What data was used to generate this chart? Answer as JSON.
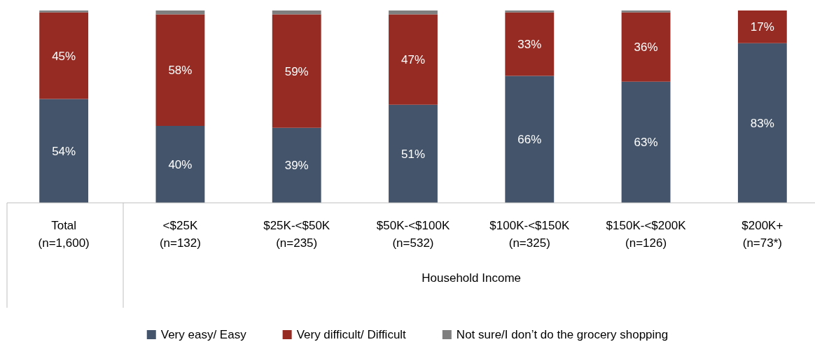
{
  "chart_data": {
    "type": "bar",
    "stacked": true,
    "xlabel": "Household Income",
    "categories": [
      "Total\n(n=1,600)",
      "<$25K\n(n=132)",
      "$25K-<$50K\n(n=235)",
      "$50K-<$100K\n(n=532)",
      "$100K-<$150K\n(n=325)",
      "$150K-<$200K\n(n=126)",
      "$200K+\n(n=73*)"
    ],
    "ylim": [
      0,
      100
    ],
    "tick_labels": "x",
    "legend": "bottom",
    "series": [
      {
        "name": "Very easy/ Easy",
        "color": "#44546a",
        "values": [
          54,
          40,
          39,
          51,
          66,
          63,
          83
        ],
        "value_labels": [
          "54%",
          "40%",
          "39%",
          "51%",
          "66%",
          "63%",
          "83%"
        ]
      },
      {
        "name": "Very difficult/ Difficult",
        "color": "#952b23",
        "values": [
          45,
          58,
          59,
          47,
          33,
          36,
          17
        ],
        "value_labels": [
          "45%",
          "58%",
          "59%",
          "47%",
          "33%",
          "36%",
          "17%"
        ]
      },
      {
        "name": "Not sure/I don’t do the grocery shopping",
        "color": "#7f7f7f",
        "values": [
          1,
          2,
          2,
          2,
          1,
          1,
          0
        ],
        "value_labels": [
          null,
          null,
          null,
          null,
          null,
          null,
          null
        ]
      }
    ]
  }
}
